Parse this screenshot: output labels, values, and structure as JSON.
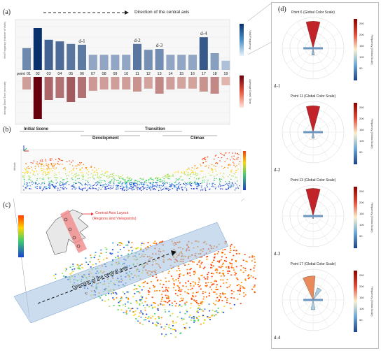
{
  "panel_a": {
    "label": "(a)",
    "direction_text": "Direction of the central axis",
    "point_label": "point",
    "points": [
      "01",
      "02",
      "03",
      "04",
      "05",
      "06",
      "07",
      "08",
      "09",
      "10",
      "11",
      "12",
      "13",
      "14",
      "15",
      "16",
      "17",
      "18",
      "19"
    ],
    "markers": [
      {
        "text": "d-1",
        "point": "06"
      },
      {
        "text": "d-2",
        "point": "11"
      },
      {
        "text": "d-3",
        "point": "13"
      },
      {
        "text": "d-4",
        "point": "17"
      }
    ],
    "visit_frequency": [
      0.52,
      1.0,
      0.72,
      0.68,
      0.62,
      0.6,
      0.36,
      0.36,
      0.36,
      0.36,
      0.62,
      0.48,
      0.5,
      0.36,
      0.36,
      0.36,
      0.78,
      0.4,
      0.22
    ],
    "dwell_time": [
      0.3,
      1.0,
      0.55,
      0.5,
      0.6,
      0.5,
      0.33,
      0.3,
      0.3,
      0.3,
      0.35,
      0.28,
      0.4,
      0.3,
      0.28,
      0.28,
      0.35,
      0.4,
      0.2
    ],
    "upper_colorbar_label": "Visit Frequency",
    "lower_colorbar_label": "Average Dwell Time",
    "upper_axis_label": "Visit Frequency (Number of Visits)",
    "lower_axis_label": "Average Dwell Time (seconds)",
    "upper_color": "#1f5fa3",
    "lower_color": "#d6362b"
  },
  "phases": [
    {
      "name": "Initial Scene"
    },
    {
      "name": "Development"
    },
    {
      "name": "Transition"
    },
    {
      "name": "Climax"
    }
  ],
  "panel_b": {
    "label": "(b)",
    "axis_label": "Altitude"
  },
  "panel_c": {
    "label": "(c)",
    "callout_line1": "Central Axis Layout",
    "callout_line2": "(Regions and Viewpoints)",
    "axis_text": "Direction of the central axis"
  },
  "panel_d": {
    "label": "(d)",
    "colorbar_label": "Frequency (Global Scale)",
    "tick_values": [
      "50",
      "100",
      "150",
      "200",
      "250"
    ],
    "plots": [
      {
        "title": "Point 6 (Global Color Scale)",
        "tag": "d-1",
        "point": "6",
        "main_dir_deg": 0,
        "main_len": 0.88,
        "main_color": "#c22329",
        "side_len": 0.22,
        "side_color": "#8fb8d8"
      },
      {
        "title": "Point 11 (Global Color Scale)",
        "tag": "d-2",
        "point": "11",
        "main_dir_deg": 0,
        "main_len": 0.86,
        "main_color": "#c22329",
        "side_len": 0.2,
        "side_color": "#8fb8d8"
      },
      {
        "title": "Point 13 (Global Color Scale)",
        "tag": "d-3",
        "point": "13",
        "main_dir_deg": 0,
        "main_len": 0.9,
        "main_color": "#c22329",
        "side_len": 0.08,
        "side_color": "#5b86b8"
      },
      {
        "title": "Point 17 (Global Color Scale)",
        "tag": "d-4",
        "point": "17",
        "main_dir_deg": 350,
        "main_len": 0.78,
        "main_color": "#e98a5a",
        "side_len": 0.32,
        "side_color": "#a9cde3"
      }
    ]
  }
}
